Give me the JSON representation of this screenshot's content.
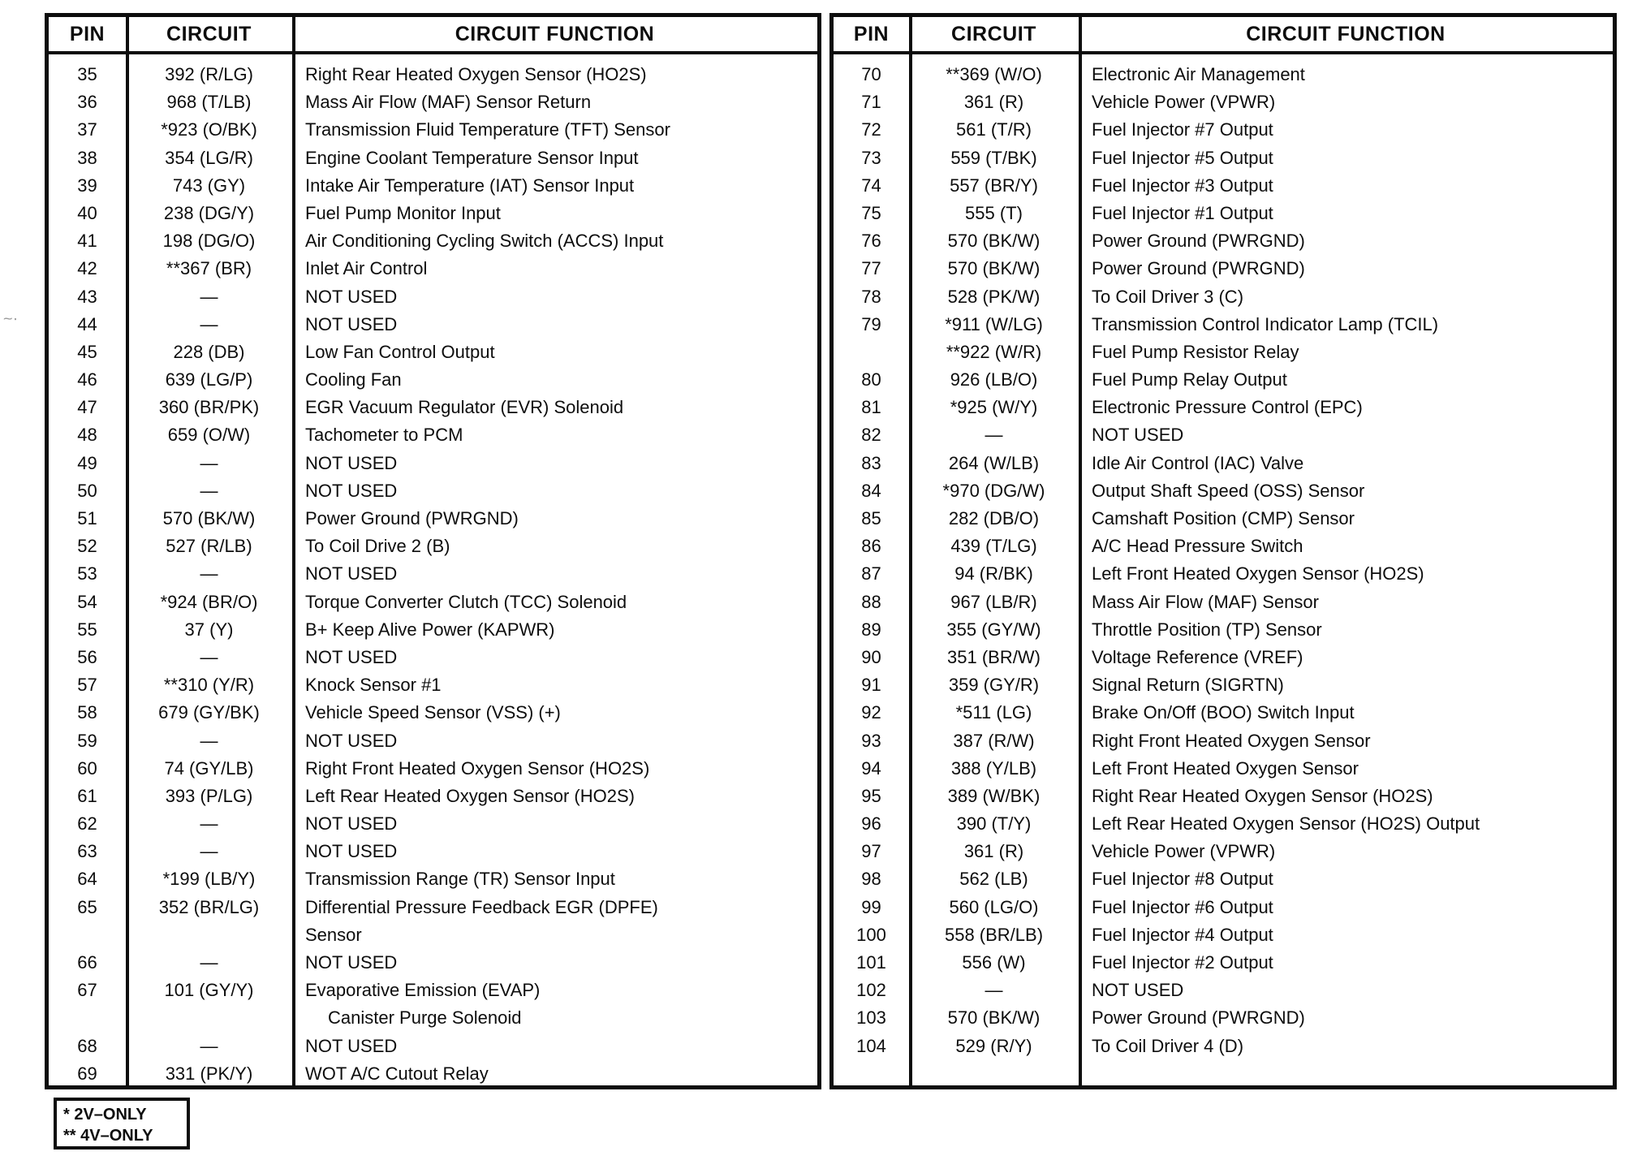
{
  "colors": {
    "ink": "#0d0d0d",
    "paper": "#ffffff"
  },
  "artifact_mark": "~·",
  "legend": {
    "line1": "* 2V–ONLY",
    "line2": "** 4V–ONLY"
  },
  "tables": [
    {
      "headers": [
        "PIN",
        "CIRCUIT",
        "CIRCUIT FUNCTION"
      ],
      "rows": [
        {
          "pin": "35",
          "circuit": "392 (R/LG)",
          "function": "Right Rear Heated Oxygen Sensor (HO2S)"
        },
        {
          "pin": "36",
          "circuit": "968 (T/LB)",
          "function": "Mass Air Flow (MAF) Sensor Return"
        },
        {
          "pin": "37",
          "circuit": "*923 (O/BK)",
          "function": "Transmission Fluid Temperature (TFT) Sensor"
        },
        {
          "pin": "38",
          "circuit": "354 (LG/R)",
          "function": "Engine Coolant Temperature Sensor Input"
        },
        {
          "pin": "39",
          "circuit": "743 (GY)",
          "function": "Intake Air Temperature (IAT) Sensor Input"
        },
        {
          "pin": "40",
          "circuit": "238 (DG/Y)",
          "function": "Fuel Pump Monitor Input"
        },
        {
          "pin": "41",
          "circuit": "198 (DG/O)",
          "function": "Air Conditioning Cycling Switch (ACCS) Input"
        },
        {
          "pin": "42",
          "circuit": "**367 (BR)",
          "function": "Inlet Air Control"
        },
        {
          "pin": "43",
          "circuit": "—",
          "function": "NOT USED"
        },
        {
          "pin": "44",
          "circuit": "—",
          "function": "NOT USED"
        },
        {
          "pin": "45",
          "circuit": "228 (DB)",
          "function": "Low Fan Control Output"
        },
        {
          "pin": "46",
          "circuit": "639 (LG/P)",
          "function": "Cooling Fan"
        },
        {
          "pin": "47",
          "circuit": "360 (BR/PK)",
          "function": "EGR Vacuum Regulator (EVR) Solenoid"
        },
        {
          "pin": "48",
          "circuit": "659 (O/W)",
          "function": "Tachometer to PCM"
        },
        {
          "pin": "49",
          "circuit": "—",
          "function": "NOT USED"
        },
        {
          "pin": "50",
          "circuit": "—",
          "function": "NOT USED"
        },
        {
          "pin": "51",
          "circuit": "570 (BK/W)",
          "function": "Power Ground (PWRGND)"
        },
        {
          "pin": "52",
          "circuit": "527 (R/LB)",
          "function": "To Coil Drive 2 (B)"
        },
        {
          "pin": "53",
          "circuit": "—",
          "function": "NOT USED"
        },
        {
          "pin": "54",
          "circuit": "*924 (BR/O)",
          "function": "Torque Converter Clutch (TCC) Solenoid"
        },
        {
          "pin": "55",
          "circuit": "37 (Y)",
          "function": "B+ Keep Alive Power (KAPWR)"
        },
        {
          "pin": "56",
          "circuit": "—",
          "function": "NOT USED"
        },
        {
          "pin": "57",
          "circuit": "**310 (Y/R)",
          "function": "Knock Sensor #1"
        },
        {
          "pin": "58",
          "circuit": "679 (GY/BK)",
          "function": "Vehicle Speed Sensor (VSS) (+)"
        },
        {
          "pin": "59",
          "circuit": "—",
          "function": "NOT USED"
        },
        {
          "pin": "60",
          "circuit": "74 (GY/LB)",
          "function": "Right Front Heated Oxygen Sensor (HO2S)"
        },
        {
          "pin": "61",
          "circuit": "393 (P/LG)",
          "function": "Left Rear Heated Oxygen Sensor (HO2S)"
        },
        {
          "pin": "62",
          "circuit": "—",
          "function": "NOT USED"
        },
        {
          "pin": "63",
          "circuit": "—",
          "function": "NOT USED"
        },
        {
          "pin": "64",
          "circuit": "*199 (LB/Y)",
          "function": "Transmission Range (TR) Sensor Input"
        },
        {
          "pin": "65",
          "circuit": "352 (BR/LG)",
          "function": "Differential Pressure Feedback EGR (DPFE)"
        },
        {
          "pin": "",
          "circuit": "",
          "function": "Sensor"
        },
        {
          "pin": "66",
          "circuit": "—",
          "function": "NOT USED"
        },
        {
          "pin": "67",
          "circuit": "101 (GY/Y)",
          "function": "Evaporative Emission (EVAP)"
        },
        {
          "pin": "",
          "circuit": "",
          "function": "Canister Purge Solenoid",
          "indent": true
        },
        {
          "pin": "68",
          "circuit": "—",
          "function": "NOT USED"
        },
        {
          "pin": "69",
          "circuit": "331 (PK/Y)",
          "function": "WOT A/C Cutout Relay"
        }
      ]
    },
    {
      "headers": [
        "PIN",
        "CIRCUIT",
        "CIRCUIT FUNCTION"
      ],
      "rows": [
        {
          "pin": "70",
          "circuit": "**369 (W/O)",
          "function": "Electronic Air Management"
        },
        {
          "pin": "71",
          "circuit": "361 (R)",
          "function": "Vehicle Power (VPWR)"
        },
        {
          "pin": "72",
          "circuit": "561 (T/R)",
          "function": "Fuel Injector #7 Output"
        },
        {
          "pin": "73",
          "circuit": "559 (T/BK)",
          "function": "Fuel Injector #5 Output"
        },
        {
          "pin": "74",
          "circuit": "557 (BR/Y)",
          "function": "Fuel Injector #3 Output"
        },
        {
          "pin": "75",
          "circuit": "555 (T)",
          "function": "Fuel Injector #1 Output"
        },
        {
          "pin": "76",
          "circuit": "570 (BK/W)",
          "function": "Power Ground (PWRGND)"
        },
        {
          "pin": "77",
          "circuit": "570 (BK/W)",
          "function": "Power Ground (PWRGND)"
        },
        {
          "pin": "78",
          "circuit": "528 (PK/W)",
          "function": "To Coil Driver 3 (C)"
        },
        {
          "pin": "79",
          "circuit": "*911 (W/LG)",
          "function": "Transmission Control Indicator Lamp (TCIL)"
        },
        {
          "pin": "",
          "circuit": "**922 (W/R)",
          "function": "Fuel Pump Resistor Relay"
        },
        {
          "pin": "80",
          "circuit": "926 (LB/O)",
          "function": "Fuel Pump Relay Output"
        },
        {
          "pin": "81",
          "circuit": "*925 (W/Y)",
          "function": "Electronic Pressure Control (EPC)"
        },
        {
          "pin": "82",
          "circuit": "—",
          "function": "NOT USED"
        },
        {
          "pin": "83",
          "circuit": "264 (W/LB)",
          "function": "Idle Air Control (IAC) Valve"
        },
        {
          "pin": "84",
          "circuit": "*970 (DG/W)",
          "function": "Output Shaft Speed (OSS) Sensor"
        },
        {
          "pin": "85",
          "circuit": "282 (DB/O)",
          "function": "Camshaft Position (CMP) Sensor"
        },
        {
          "pin": "86",
          "circuit": "439 (T/LG)",
          "function": "A/C Head Pressure Switch"
        },
        {
          "pin": "87",
          "circuit": "94 (R/BK)",
          "function": "Left Front Heated Oxygen Sensor (HO2S)"
        },
        {
          "pin": "88",
          "circuit": "967 (LB/R)",
          "function": "Mass Air Flow (MAF) Sensor"
        },
        {
          "pin": "89",
          "circuit": "355 (GY/W)",
          "function": "Throttle Position (TP) Sensor"
        },
        {
          "pin": "90",
          "circuit": "351 (BR/W)",
          "function": "Voltage Reference (VREF)"
        },
        {
          "pin": "91",
          "circuit": "359 (GY/R)",
          "function": "Signal Return (SIGRTN)"
        },
        {
          "pin": "92",
          "circuit": "*511 (LG)",
          "function": "Brake On/Off (BOO) Switch Input"
        },
        {
          "pin": "93",
          "circuit": "387 (R/W)",
          "function": "Right Front Heated Oxygen Sensor"
        },
        {
          "pin": "94",
          "circuit": "388 (Y/LB)",
          "function": "Left Front Heated Oxygen Sensor"
        },
        {
          "pin": "95",
          "circuit": "389 (W/BK)",
          "function": "Right Rear Heated Oxygen Sensor (HO2S)"
        },
        {
          "pin": "96",
          "circuit": "390 (T/Y)",
          "function": "Left Rear Heated Oxygen Sensor (HO2S) Output"
        },
        {
          "pin": "97",
          "circuit": "361 (R)",
          "function": "Vehicle Power (VPWR)"
        },
        {
          "pin": "98",
          "circuit": "562 (LB)",
          "function": "Fuel Injector #8 Output"
        },
        {
          "pin": "99",
          "circuit": "560 (LG/O)",
          "function": "Fuel Injector #6 Output"
        },
        {
          "pin": "100",
          "circuit": "558 (BR/LB)",
          "function": "Fuel Injector #4 Output"
        },
        {
          "pin": "101",
          "circuit": "556 (W)",
          "function": "Fuel Injector #2 Output"
        },
        {
          "pin": "102",
          "circuit": "—",
          "function": "NOT USED"
        },
        {
          "pin": "103",
          "circuit": "570 (BK/W)",
          "function": "Power Ground (PWRGND)"
        },
        {
          "pin": "104",
          "circuit": "529 (R/Y)",
          "function": "To Coil Driver 4 (D)"
        }
      ]
    }
  ]
}
